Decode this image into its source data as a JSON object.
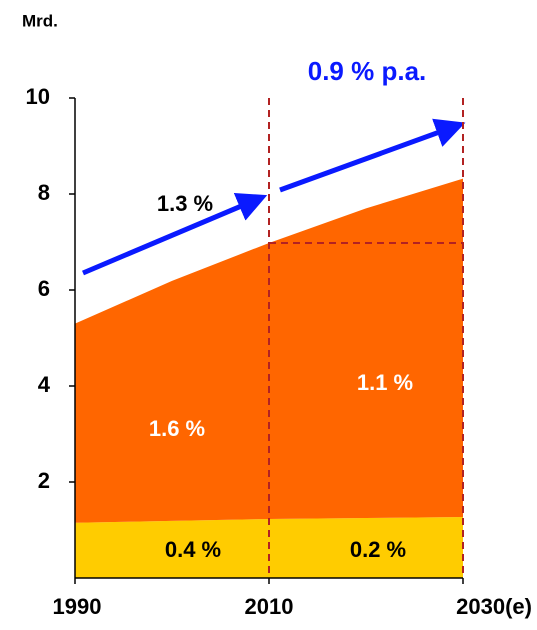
{
  "chart_data": {
    "type": "area",
    "y_unit": "Mrd.",
    "x": [
      1990,
      2000,
      2010,
      2020,
      2030
    ],
    "series": [
      {
        "color": "#ffcc00",
        "values": [
          1.15,
          1.19,
          1.23,
          1.25,
          1.27
        ]
      },
      {
        "color": "#ff6600",
        "values": [
          4.15,
          5.0,
          5.75,
          6.45,
          7.05
        ]
      }
    ],
    "xlim": [
      1990,
      2030
    ],
    "xticks": [
      1990,
      2010,
      {
        "value": 2030,
        "label": "2030(e)"
      }
    ],
    "ylim": [
      0,
      10
    ],
    "yticks": [
      2,
      4,
      6,
      8,
      10
    ],
    "annotations": [
      "0.9 % p.a.",
      "1.3 %",
      "1.6 %",
      "1.1 %",
      "0.4 %",
      "0.2 %"
    ]
  }
}
